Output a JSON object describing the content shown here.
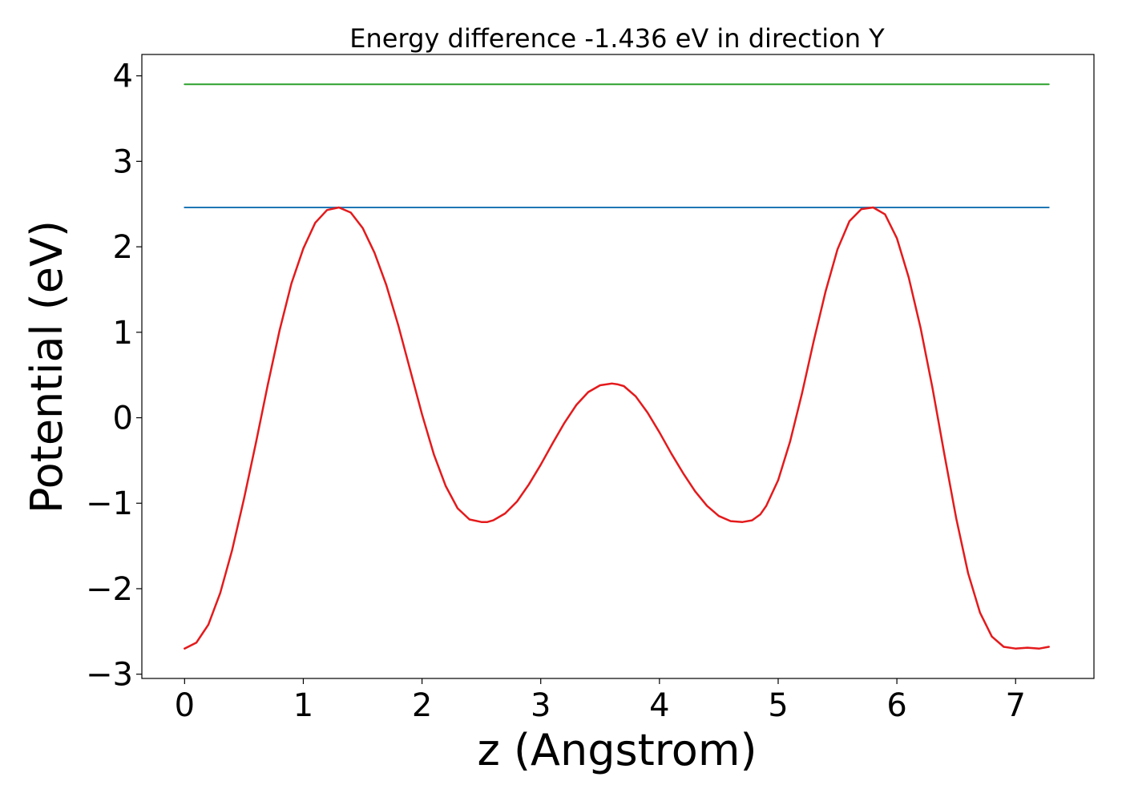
{
  "chart_data": {
    "type": "line",
    "title": "Energy difference -1.436 eV in direction Y",
    "xlabel": "z (Angstrom)",
    "ylabel": "Potential (eV)",
    "xlim": [
      -0.36,
      7.66
    ],
    "ylim": [
      -3.05,
      4.25
    ],
    "xticks": [
      0,
      1,
      2,
      3,
      4,
      5,
      6,
      7
    ],
    "yticks": [
      -3,
      -2,
      -1,
      0,
      1,
      2,
      3,
      4
    ],
    "xtick_labels": [
      "0",
      "1",
      "2",
      "3",
      "4",
      "5",
      "6",
      "7"
    ],
    "ytick_labels": [
      "−3",
      "−2",
      "−1",
      "0",
      "1",
      "2",
      "3",
      "4"
    ],
    "grid": false,
    "legend": "none",
    "series": [
      {
        "color": "#2ca02c",
        "x": [
          0,
          7.28
        ],
        "y": [
          3.9,
          3.9
        ]
      },
      {
        "color": "#1f77b4",
        "x": [
          0,
          7.28
        ],
        "y": [
          2.46,
          2.46
        ]
      },
      {
        "color": "#e41a1c",
        "x": [
          0,
          0.1,
          0.2,
          0.3,
          0.4,
          0.5,
          0.6,
          0.7,
          0.8,
          0.9,
          1.0,
          1.1,
          1.2,
          1.3,
          1.4,
          1.5,
          1.6,
          1.7,
          1.8,
          1.9,
          2.0,
          2.1,
          2.2,
          2.3,
          2.4,
          2.5,
          2.55,
          2.6,
          2.7,
          2.8,
          2.9,
          3.0,
          3.1,
          3.2,
          3.3,
          3.4,
          3.5,
          3.6,
          3.65,
          3.7,
          3.8,
          3.9,
          4.0,
          4.1,
          4.2,
          4.3,
          4.4,
          4.5,
          4.6,
          4.7,
          4.78,
          4.85,
          4.9,
          5.0,
          5.1,
          5.2,
          5.3,
          5.4,
          5.5,
          5.6,
          5.7,
          5.8,
          5.9,
          6.0,
          6.1,
          6.2,
          6.3,
          6.4,
          6.5,
          6.6,
          6.7,
          6.8,
          6.9,
          7.0,
          7.1,
          7.2,
          7.28
        ],
        "y": [
          -2.7,
          -2.63,
          -2.42,
          -2.05,
          -1.55,
          -0.95,
          -0.3,
          0.38,
          1.02,
          1.57,
          1.98,
          2.28,
          2.43,
          2.46,
          2.4,
          2.22,
          1.93,
          1.55,
          1.08,
          0.56,
          0.04,
          -0.43,
          -0.8,
          -1.06,
          -1.19,
          -1.22,
          -1.22,
          -1.2,
          -1.12,
          -0.98,
          -0.78,
          -0.55,
          -0.3,
          -0.06,
          0.15,
          0.3,
          0.38,
          0.4,
          0.39,
          0.37,
          0.25,
          0.06,
          -0.17,
          -0.42,
          -0.65,
          -0.86,
          -1.03,
          -1.15,
          -1.21,
          -1.22,
          -1.2,
          -1.13,
          -1.03,
          -0.73,
          -0.28,
          0.28,
          0.9,
          1.48,
          1.97,
          2.3,
          2.44,
          2.46,
          2.38,
          2.1,
          1.64,
          1.05,
          0.35,
          -0.43,
          -1.18,
          -1.82,
          -2.28,
          -2.56,
          -2.68,
          -2.7,
          -2.69,
          -2.7,
          -2.68
        ]
      }
    ]
  }
}
